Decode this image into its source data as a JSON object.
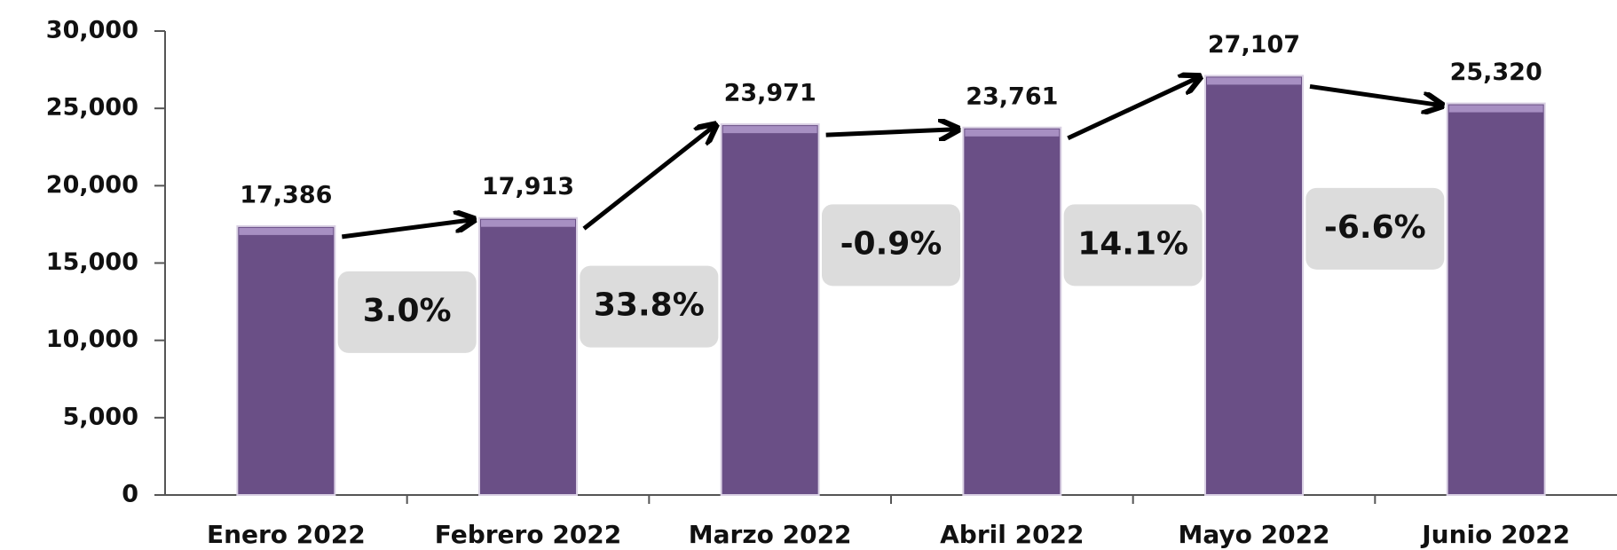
{
  "chart_data": {
    "type": "bar",
    "categories": [
      "Enero 2022",
      "Febrero 2022",
      "Marzo 2022",
      "Abril 2022",
      "Mayo 2022",
      "Junio 2022"
    ],
    "values": [
      17386,
      17913,
      23971,
      23761,
      27107,
      25320
    ],
    "value_labels": [
      "17,386",
      "17,913",
      "23,971",
      "23,761",
      "27,107",
      "25,320"
    ],
    "color": "#6a4f86",
    "ylim": [
      0,
      30000
    ],
    "yticks": [
      0,
      {
        "value": 5000,
        "label": "5,000"
      },
      {
        "value": 10000,
        "label": "10,000"
      },
      {
        "value": 15000,
        "label": "15,000"
      },
      {
        "value": 20000,
        "label": "20,000"
      },
      {
        "value": 25000,
        "label": "25,000"
      },
      {
        "value": 30000,
        "label": "30,000"
      }
    ],
    "annotations": [
      "3.0%",
      "33.8%",
      "-0.9%",
      "14.1%",
      "-6.6%"
    ]
  }
}
